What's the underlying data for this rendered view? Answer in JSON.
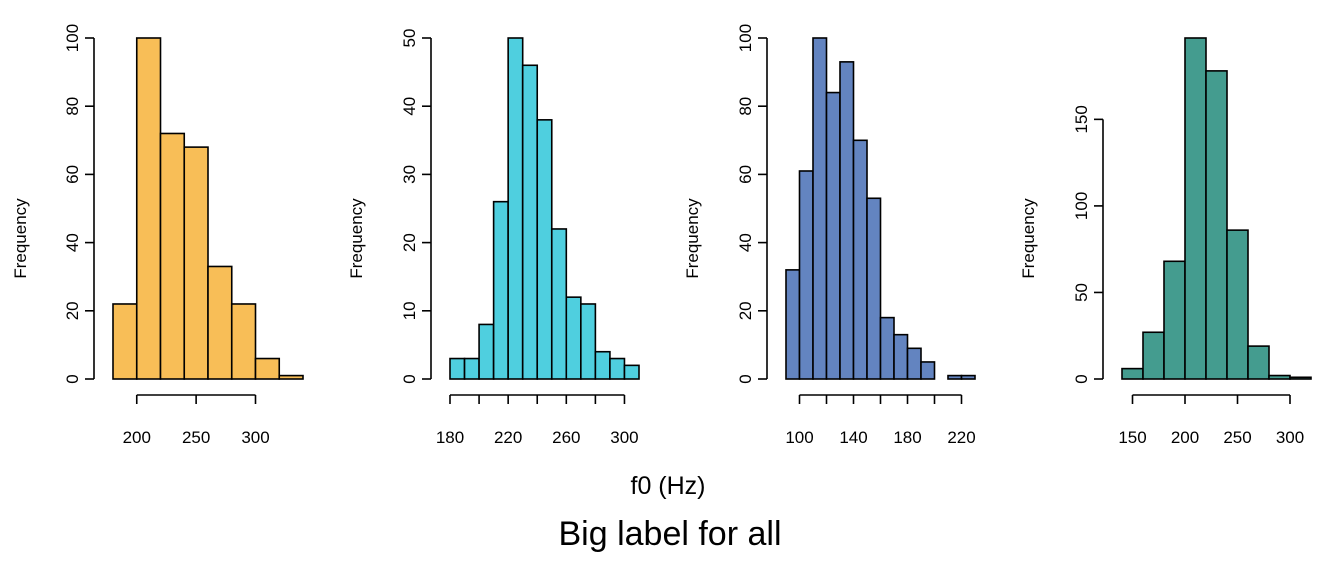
{
  "figure": {
    "xlabel": "f0 (Hz)",
    "caption": "Big label for all"
  },
  "chart_data": [
    {
      "type": "bar",
      "ylabel": "Frequency",
      "color": "#F8BE57",
      "bin_edges": [
        180,
        200,
        220,
        240,
        260,
        280,
        300,
        320,
        340
      ],
      "values": [
        22,
        100,
        72,
        68,
        33,
        22,
        6,
        1
      ],
      "xticks": [
        200,
        250,
        300
      ],
      "yticks": [
        0,
        20,
        40,
        60,
        80,
        100
      ],
      "xlim": [
        180,
        340
      ],
      "ylim": [
        0,
        100
      ]
    },
    {
      "type": "bar",
      "ylabel": "Frequency",
      "color": "#4FCFDF",
      "bin_edges": [
        180,
        190,
        200,
        210,
        220,
        230,
        240,
        250,
        260,
        270,
        280,
        290,
        300,
        310
      ],
      "values": [
        3,
        3,
        8,
        26,
        50,
        46,
        38,
        22,
        12,
        11,
        4,
        3,
        2
      ],
      "xticks": [
        180,
        220,
        260,
        300
      ],
      "xminor": [
        200,
        240,
        280
      ],
      "yticks": [
        0,
        10,
        20,
        30,
        40,
        50
      ],
      "xlim": [
        180,
        310
      ],
      "ylim": [
        0,
        50
      ]
    },
    {
      "type": "bar",
      "ylabel": "Frequency",
      "color": "#6384C0",
      "bin_edges": [
        90,
        100,
        110,
        120,
        130,
        140,
        150,
        160,
        170,
        180,
        190,
        200,
        210,
        220,
        230
      ],
      "values": [
        32,
        61,
        100,
        84,
        93,
        70,
        53,
        18,
        13,
        9,
        5,
        0,
        1,
        1
      ],
      "xticks": [
        100,
        140,
        180,
        220
      ],
      "xminor": [
        120,
        160,
        200
      ],
      "yticks": [
        0,
        20,
        40,
        60,
        80,
        100
      ],
      "xlim": [
        90,
        230
      ],
      "ylim": [
        0,
        100
      ]
    },
    {
      "type": "bar",
      "ylabel": "Frequency",
      "color": "#449C8F",
      "bin_edges": [
        140,
        160,
        180,
        200,
        220,
        240,
        260,
        280,
        300,
        320
      ],
      "values": [
        6,
        27,
        68,
        197,
        178,
        86,
        19,
        2,
        1
      ],
      "xticks": [
        150,
        200,
        250,
        300
      ],
      "yticks": [
        0,
        50,
        100,
        150
      ],
      "xlim": [
        140,
        320
      ],
      "ylim": [
        0,
        197
      ]
    }
  ]
}
